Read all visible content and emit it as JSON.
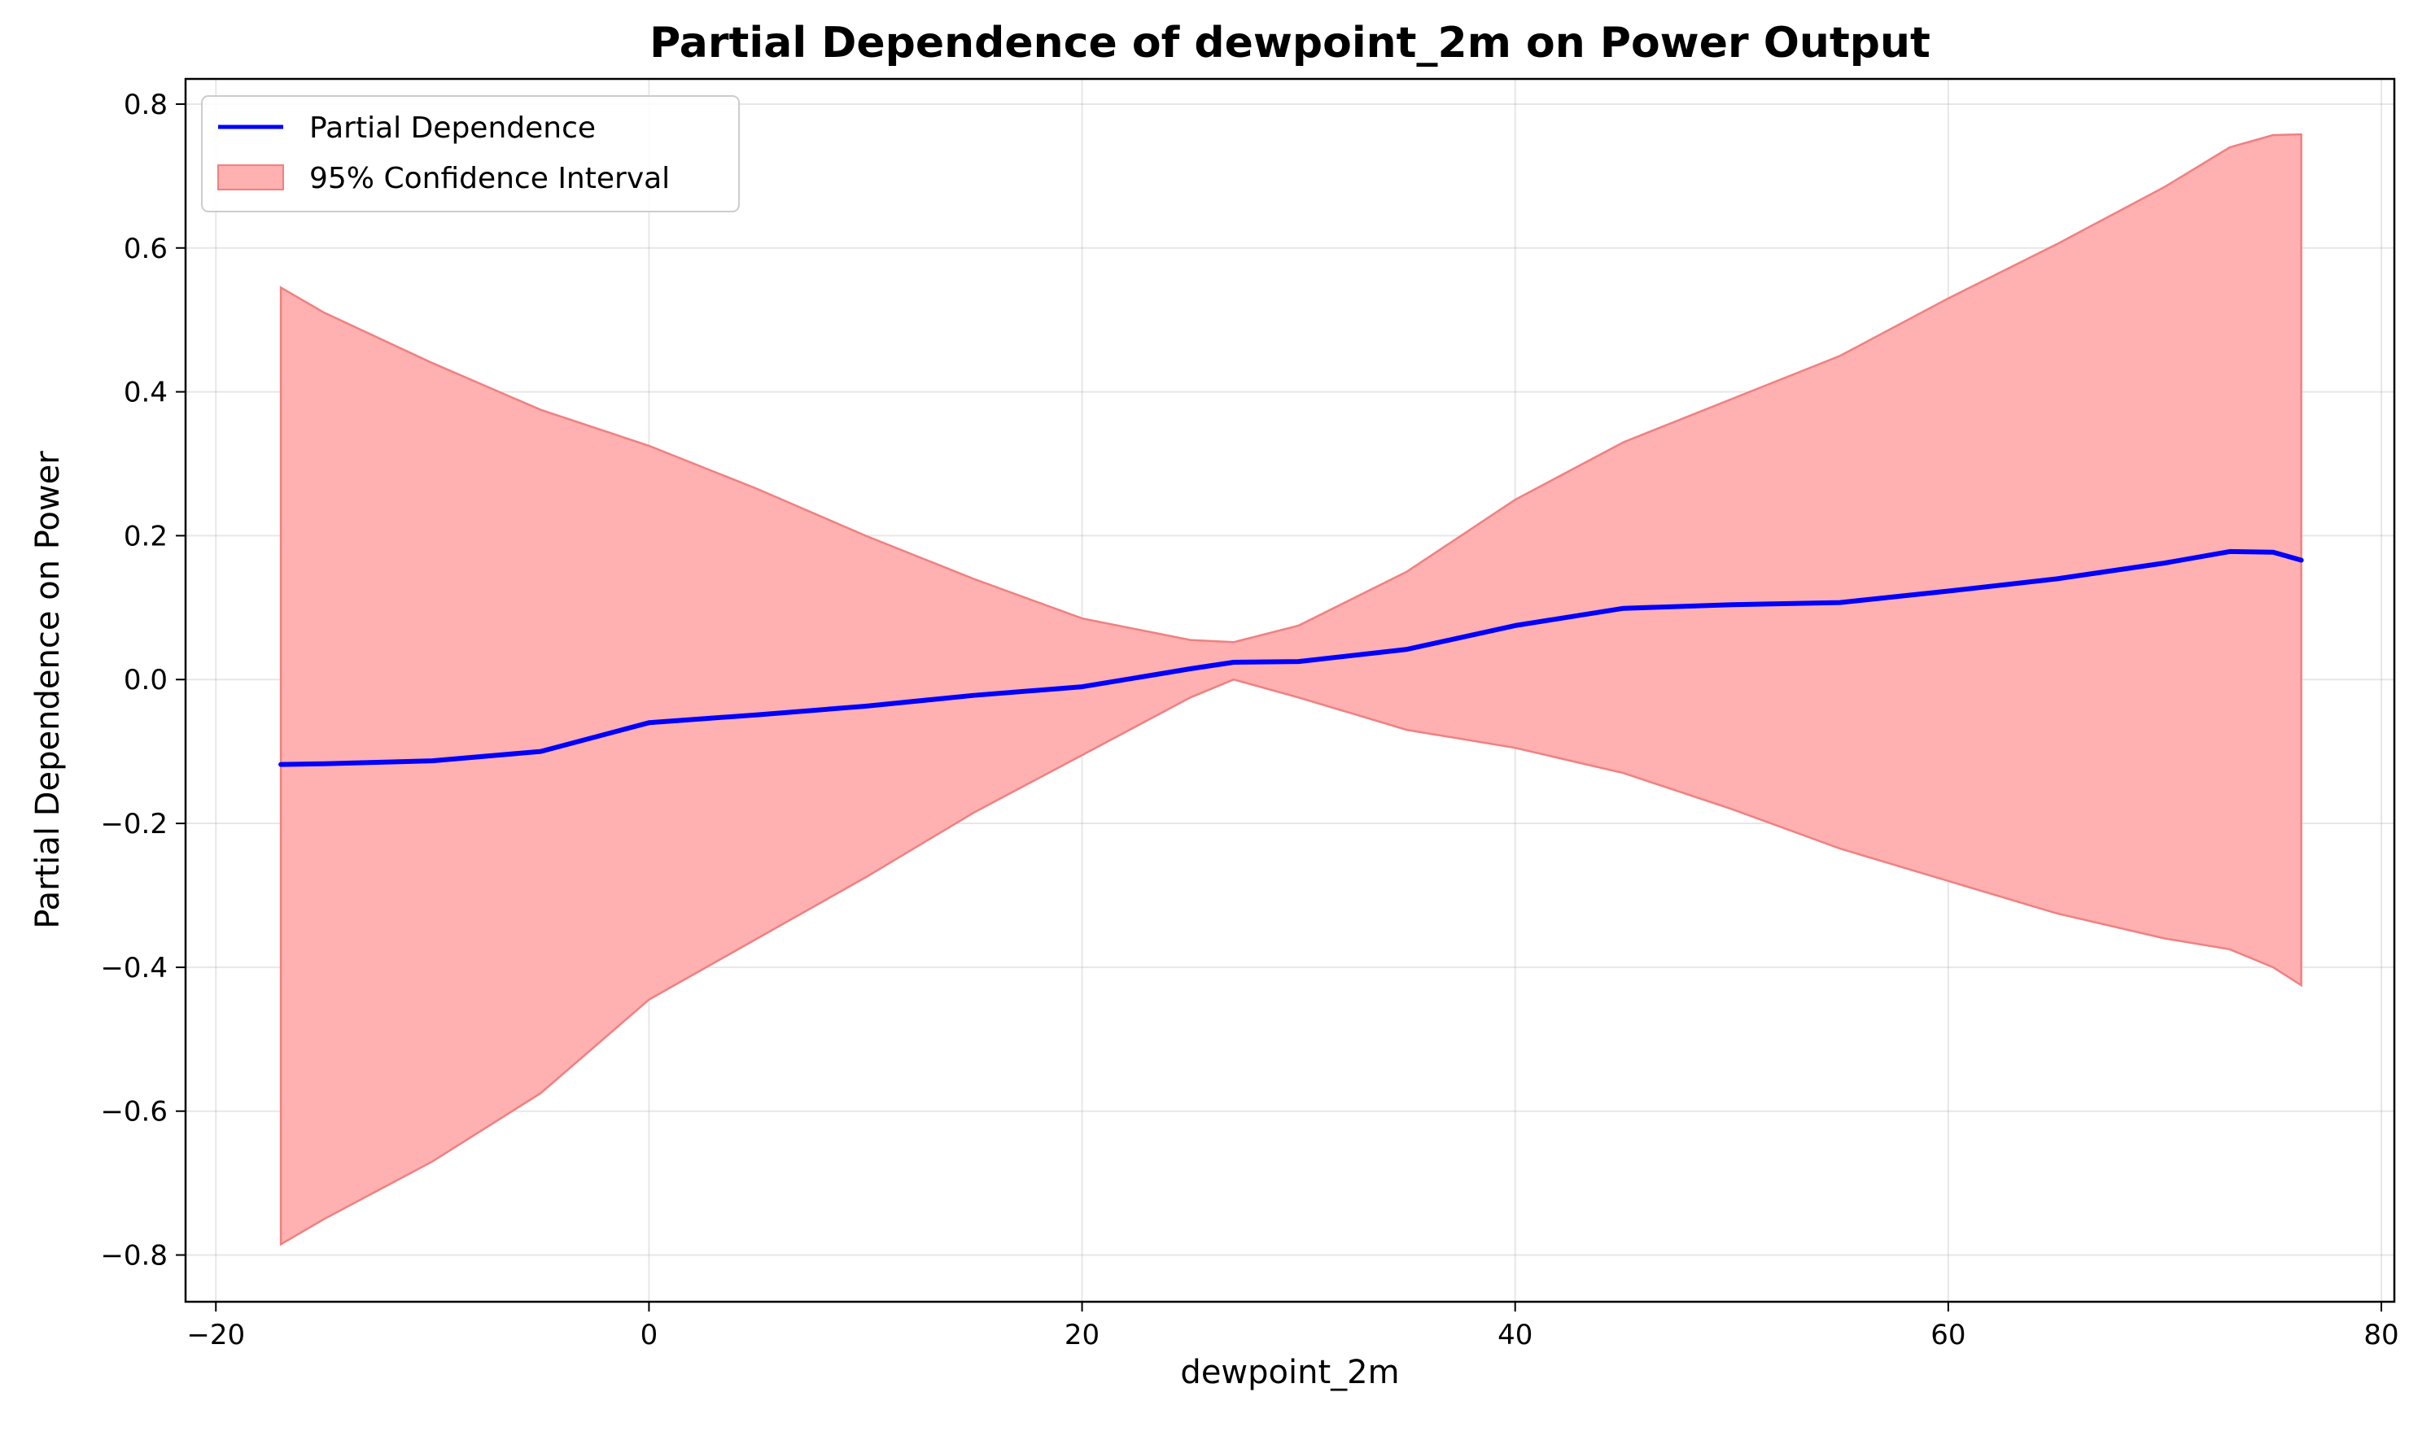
{
  "chart_data": {
    "type": "line",
    "title": "Partial Dependence of dewpoint_2m on Power Output",
    "xlabel": "dewpoint_2m",
    "ylabel": "Partial Dependence on Power",
    "xlim": [
      -21.4,
      80.6
    ],
    "ylim": [
      -0.865,
      0.835
    ],
    "xticks": [
      -20,
      0,
      20,
      40,
      60,
      80
    ],
    "xtick_labels": [
      "−20",
      "0",
      "20",
      "40",
      "60",
      "80"
    ],
    "yticks": [
      -0.8,
      -0.6,
      -0.4,
      -0.2,
      0.0,
      0.2,
      0.4,
      0.6,
      0.8
    ],
    "ytick_labels": [
      "−0.8",
      "−0.6",
      "−0.4",
      "−0.2",
      "0.0",
      "0.2",
      "0.4",
      "0.6",
      "0.8"
    ],
    "grid": true,
    "legend_position": "top-left",
    "colors": {
      "line": "#0000ff",
      "band_fill": "#ffb0b0",
      "band_edge": "#f08080"
    },
    "x": [
      -17,
      -15,
      -10,
      -5,
      0,
      5,
      10,
      15,
      20,
      25,
      27,
      30,
      35,
      40,
      45,
      50,
      55,
      60,
      65,
      70,
      73,
      75,
      76.3
    ],
    "series": [
      {
        "name": "Partial Dependence",
        "values": [
          -0.118,
          -0.117,
          -0.113,
          -0.1,
          -0.06,
          -0.049,
          -0.037,
          -0.022,
          -0.01,
          0.015,
          0.024,
          0.025,
          0.042,
          0.075,
          0.099,
          0.104,
          0.107,
          0.123,
          0.14,
          0.162,
          0.178,
          0.177,
          0.166
        ]
      }
    ],
    "confidence_band": {
      "name": "95% Confidence Interval",
      "upper": [
        0.545,
        0.51,
        0.44,
        0.375,
        0.325,
        0.265,
        0.2,
        0.14,
        0.085,
        0.055,
        0.052,
        0.075,
        0.15,
        0.25,
        0.33,
        0.39,
        0.45,
        0.53,
        0.605,
        0.685,
        0.74,
        0.757,
        0.758
      ],
      "lower": [
        -0.785,
        -0.75,
        -0.67,
        -0.575,
        -0.445,
        -0.36,
        -0.275,
        -0.185,
        -0.105,
        -0.025,
        0.0,
        -0.025,
        -0.07,
        -0.095,
        -0.13,
        -0.18,
        -0.235,
        -0.28,
        -0.325,
        -0.36,
        -0.375,
        -0.4,
        -0.425
      ]
    }
  }
}
